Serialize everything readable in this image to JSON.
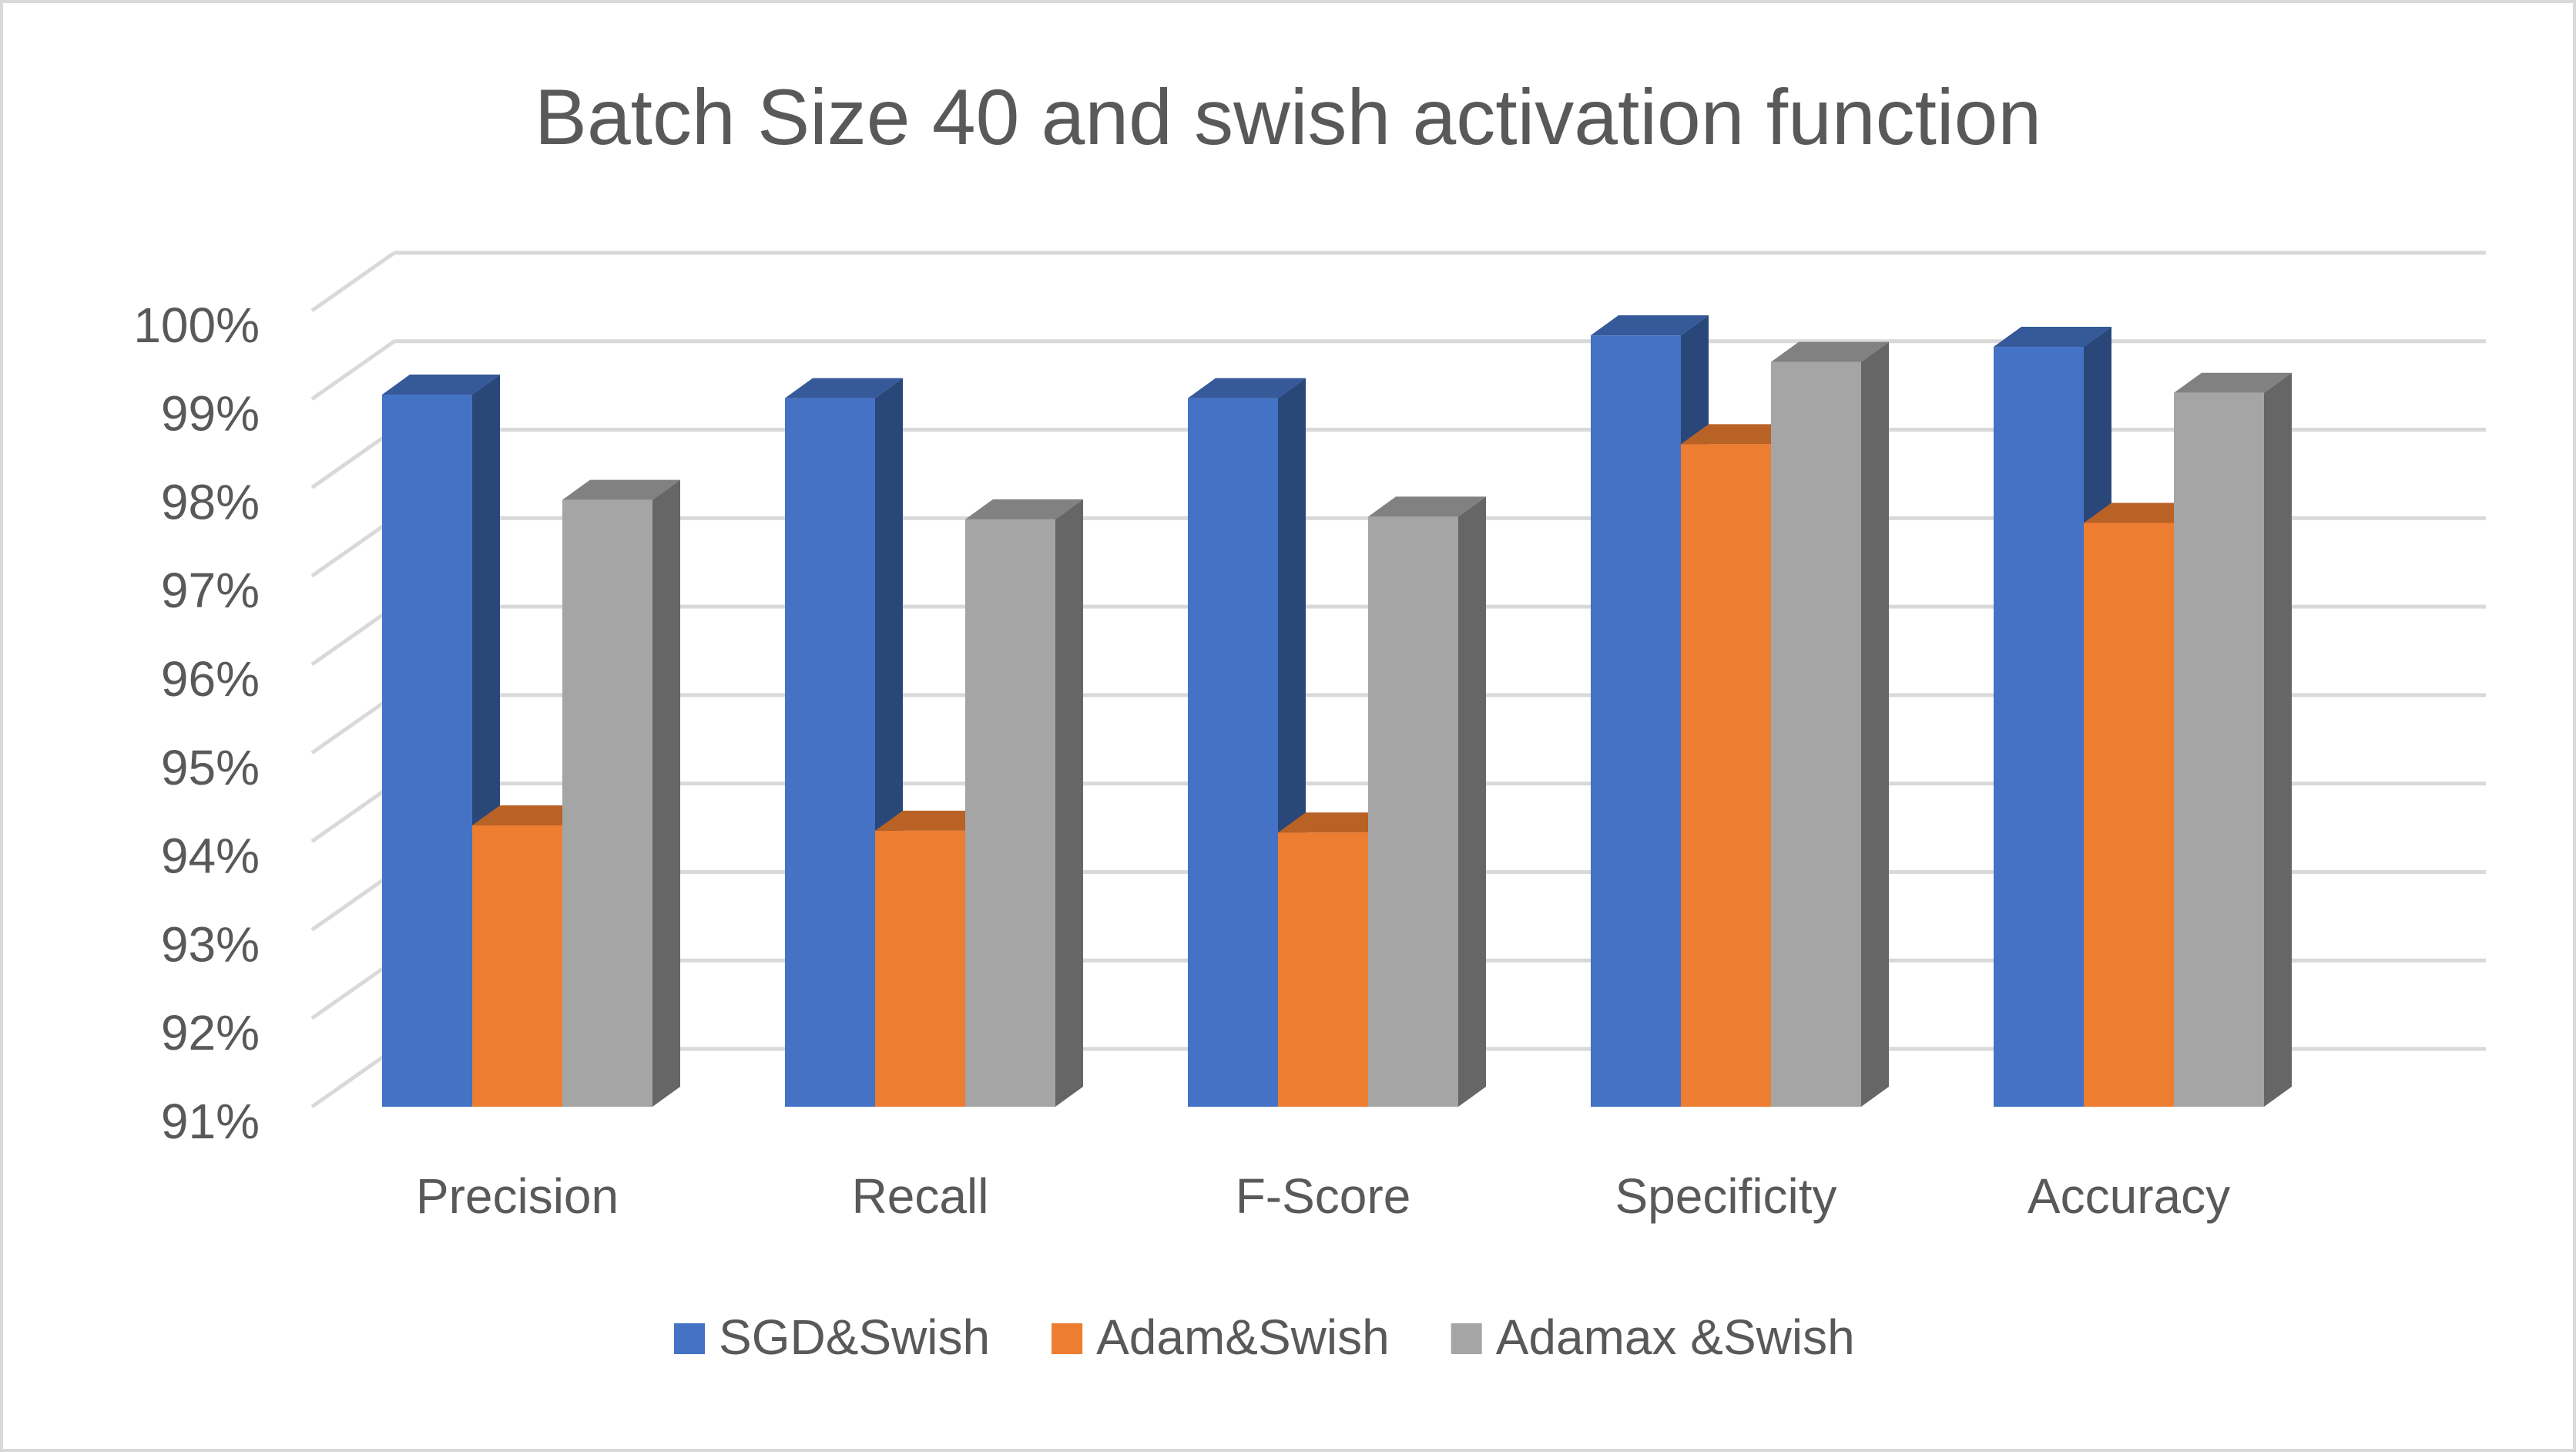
{
  "chart_data": {
    "type": "bar3d",
    "title": "Batch Size 40 and swish activation function",
    "categories": [
      "Precision",
      "Recall",
      "F-Score",
      "Specificity",
      "Accuracy"
    ],
    "series": [
      {
        "name": "SGD&Swish",
        "color": "#4472c4",
        "values": [
          99.05,
          99.01,
          99.01,
          99.72,
          99.59
        ]
      },
      {
        "name": "Adam&Swish",
        "color": "#ed7d31",
        "values": [
          94.18,
          94.12,
          94.1,
          98.49,
          97.6
        ]
      },
      {
        "name": "Adamax &Swish",
        "color": "#a5a5a5",
        "values": [
          97.86,
          97.64,
          97.67,
          99.42,
          99.07
        ]
      }
    ],
    "ylim": [
      91,
      100
    ],
    "yticks": [
      {
        "value": 91,
        "label": "91%"
      },
      {
        "value": 92,
        "label": "92%"
      },
      {
        "value": 93,
        "label": "93%"
      },
      {
        "value": 94,
        "label": "94%"
      },
      {
        "value": 95,
        "label": "95%"
      },
      {
        "value": 96,
        "label": "96%"
      },
      {
        "value": 97,
        "label": "97%"
      },
      {
        "value": 98,
        "label": "98%"
      },
      {
        "value": 99,
        "label": "99%"
      },
      {
        "value": 100,
        "label": "100%"
      }
    ],
    "grid": true,
    "legend": "bottom"
  }
}
